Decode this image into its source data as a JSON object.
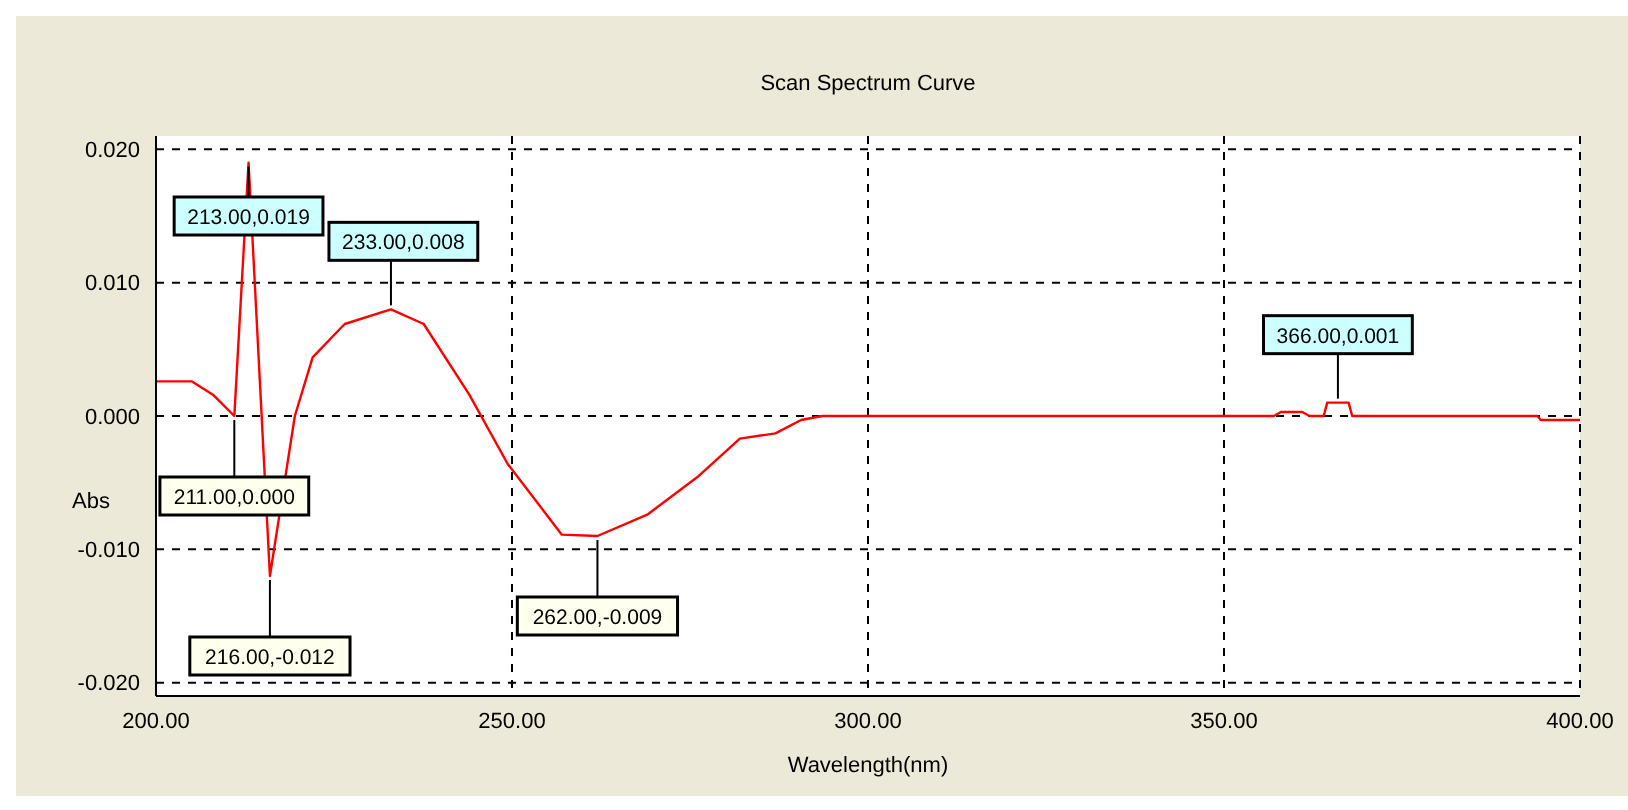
{
  "chart_data": {
    "type": "line",
    "title": "Scan Spectrum Curve",
    "xlabel": "Wavelength(nm)",
    "ylabel": "Abs",
    "x": [
      200,
      205,
      208,
      211,
      213,
      216,
      219.5,
      222,
      226.5,
      233,
      237.6,
      244,
      249.4,
      257,
      262,
      269,
      276,
      282,
      287,
      290.6,
      293.6,
      300,
      357,
      358,
      361,
      362,
      364,
      364.5,
      366,
      367.5,
      368,
      394,
      394.5,
      399,
      400
    ],
    "series": [
      {
        "color": "#ff0000",
        "values": [
          0.0026,
          0.0026,
          0.0016,
          0.0,
          0.019,
          -0.012,
          0.0,
          0.0044,
          0.0069,
          0.008,
          0.0069,
          0.0016,
          -0.0036,
          -0.0089,
          -0.009,
          -0.0074,
          -0.0046,
          -0.0017,
          -0.0013,
          -0.0003,
          0,
          0,
          0,
          0.0003,
          0.0003,
          0,
          0,
          0.001,
          0.001,
          0.001,
          0,
          0,
          -0.0003,
          -0.0003,
          -0.0003
        ]
      }
    ],
    "xlim": [
      200,
      400
    ],
    "xticks": [
      {
        "value": 200,
        "label": "200.00"
      },
      {
        "value": 250,
        "label": "250.00"
      },
      {
        "value": 300,
        "label": "300.00"
      },
      {
        "value": 350,
        "label": "350.00"
      },
      {
        "value": 400,
        "label": "400.00"
      }
    ],
    "ylim": [
      -0.021,
      0.021
    ],
    "yticks": [
      {
        "value": -0.02,
        "label": "-0.020"
      },
      {
        "value": -0.01,
        "label": "-0.010"
      },
      {
        "value": 0,
        "label": "0.000"
      },
      {
        "value": 0.01,
        "label": "0.010"
      },
      {
        "value": 0.02,
        "label": "0.020"
      }
    ],
    "grid": true,
    "line_style": "solid",
    "marker": "none",
    "legend": false,
    "annotations": [
      {
        "text": "213.00,0.019",
        "x": 213,
        "y": 0.019
      },
      {
        "text": "233.00,0.008",
        "x": 233,
        "y": 0.008
      },
      {
        "text": "211.00,0.000",
        "x": 211,
        "y": 0
      },
      {
        "text": "216.00,-0.012",
        "x": 216,
        "y": -0.012
      },
      {
        "text": "262.00,-0.009",
        "x": 262,
        "y": -0.009
      },
      {
        "text": "366.00,0.001",
        "x": 366,
        "y": 0.001
      }
    ]
  }
}
